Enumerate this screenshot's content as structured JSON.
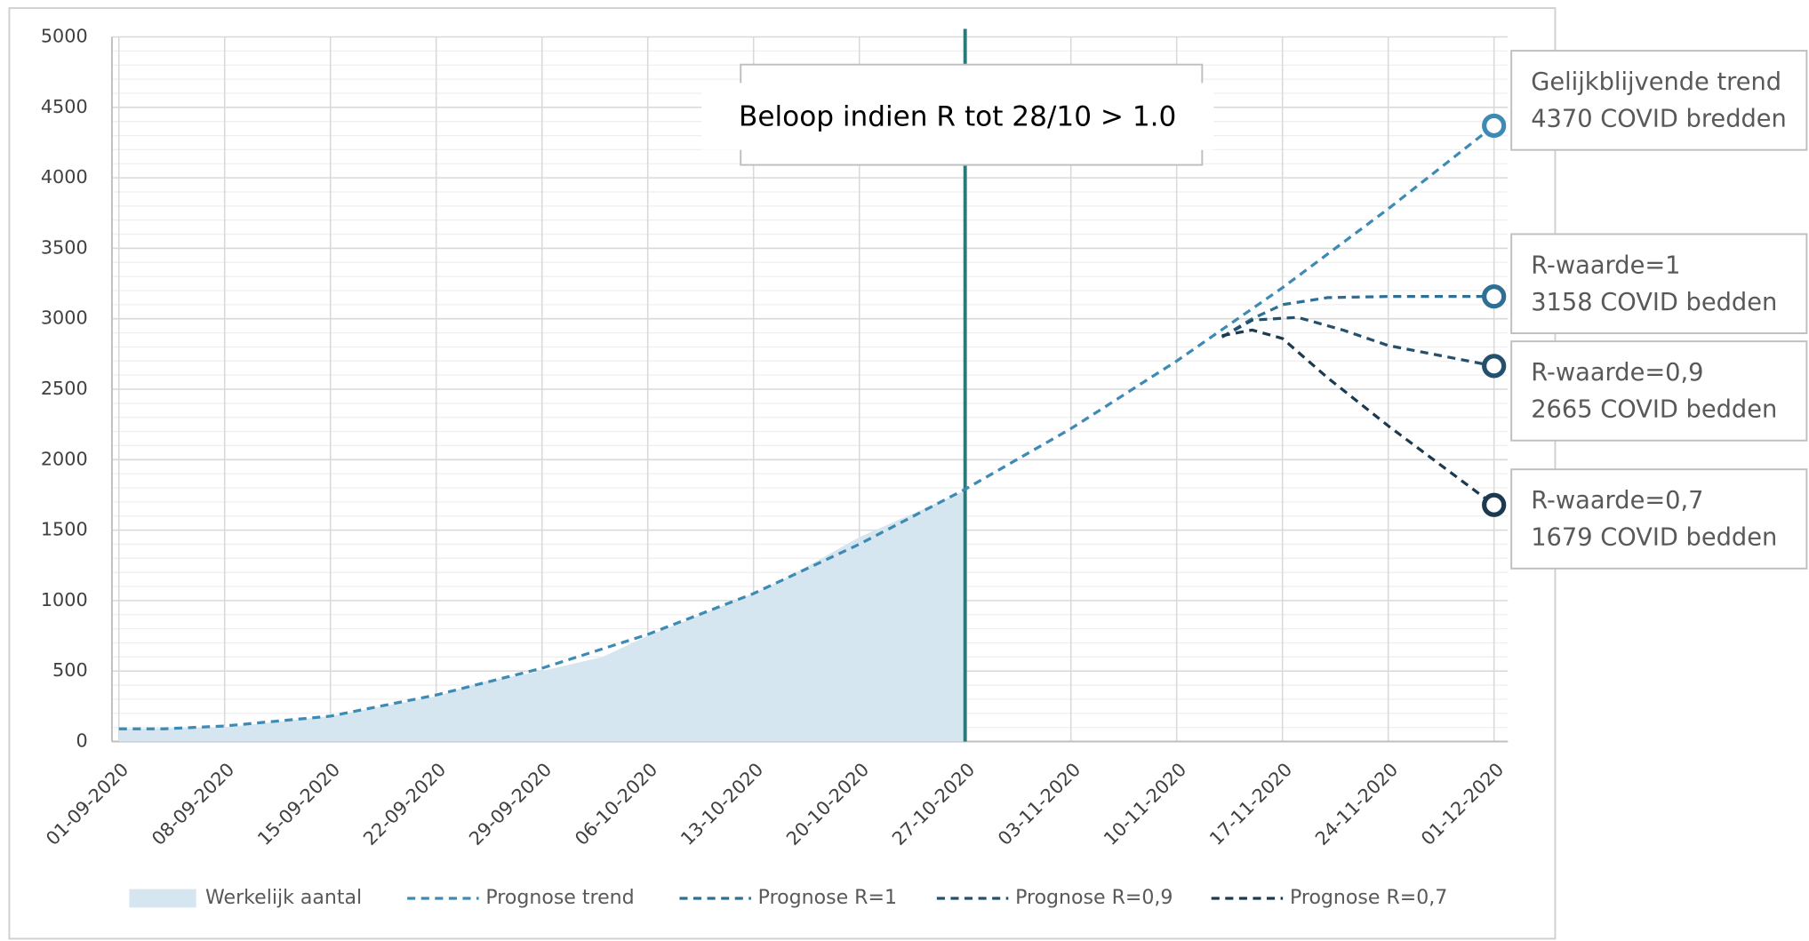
{
  "chart_data": {
    "type": "line",
    "series": [
      {
        "name": "Werkelijk aantal",
        "kind": "area",
        "color": "#d6e6f0",
        "x": [
          "01-09-2020",
          "08-09-2020",
          "15-09-2020",
          "22-09-2020",
          "25-09-2020",
          "29-09-2020",
          "03-10-2020",
          "06-10-2020",
          "13-10-2020",
          "15-10-2020",
          "20-10-2020",
          "27-10-2020"
        ],
        "values": [
          90,
          100,
          180,
          320,
          420,
          500,
          600,
          750,
          1050,
          1150,
          1450,
          1780
        ]
      },
      {
        "name": "Prognose trend",
        "color": "#3d8bb5",
        "x": [
          "01-09-2020",
          "04-09-2020",
          "08-09-2020",
          "15-09-2020",
          "22-09-2020",
          "29-09-2020",
          "06-10-2020",
          "13-10-2020",
          "20-10-2020",
          "27-10-2020",
          "03-11-2020",
          "10-11-2020",
          "17-11-2020",
          "24-11-2020",
          "01-12-2020"
        ],
        "values": [
          90,
          90,
          110,
          180,
          330,
          520,
          760,
          1050,
          1400,
          1790,
          2220,
          2700,
          3220,
          3780,
          4370
        ]
      },
      {
        "name": "Prognose R=1",
        "color": "#2e6f94",
        "x": [
          "13-11-2020",
          "15-11-2020",
          "17-11-2020",
          "20-11-2020",
          "24-11-2020",
          "01-12-2020"
        ],
        "values": [
          2870,
          3000,
          3100,
          3150,
          3158,
          3158
        ]
      },
      {
        "name": "Prognose R=0,9",
        "color": "#24506e",
        "x": [
          "13-11-2020",
          "15-11-2020",
          "18-11-2020",
          "21-11-2020",
          "24-11-2020",
          "01-12-2020"
        ],
        "values": [
          2870,
          2990,
          3010,
          2920,
          2810,
          2665
        ]
      },
      {
        "name": "Prognose R=0,7",
        "color": "#1b3a50",
        "x": [
          "13-11-2020",
          "15-11-2020",
          "17-11-2020",
          "20-11-2020",
          "24-11-2020",
          "01-12-2020"
        ],
        "values": [
          2880,
          2920,
          2860,
          2580,
          2240,
          1679
        ]
      }
    ],
    "xticks": [
      "01-09-2020",
      "08-09-2020",
      "15-09-2020",
      "22-09-2020",
      "29-09-2020",
      "06-10-2020",
      "13-10-2020",
      "20-10-2020",
      "27-10-2020",
      "03-11-2020",
      "10-11-2020",
      "17-11-2020",
      "24-11-2020",
      "01-12-2020"
    ],
    "xlim": [
      "01-09-2020",
      "01-12-2020"
    ],
    "ylim": [
      0,
      5000
    ],
    "yticks": [
      0,
      500,
      1000,
      1500,
      2000,
      2500,
      3000,
      3500,
      4000,
      4500,
      5000
    ],
    "grid": true,
    "legend": "bottom",
    "vline_x": "27-10-2020",
    "vline_color": "#2a7a7a",
    "annotation": "Beloop indien R tot 28/10 > 1.0",
    "callouts": [
      [
        "Gelijkblijvende trend",
        "4370 COVID bredden"
      ],
      [
        "R-waarde=1",
        "3158 COVID bedden"
      ],
      [
        "R-waarde=0,9",
        "2665 COVID bedden"
      ],
      [
        "R-waarde=0,7",
        "1679 COVID bedden"
      ]
    ]
  }
}
